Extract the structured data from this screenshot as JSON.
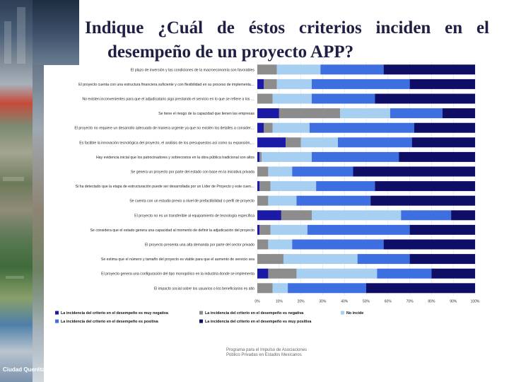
{
  "title": {
    "line1": "Indique ¿Cuál de éstos criterios inciden en el",
    "line2": "desempeño de un proyecto APP?"
  },
  "chart_data": {
    "type": "bar",
    "orientation": "horizontal",
    "stacked": true,
    "percent": true,
    "xlim": [
      0,
      100
    ],
    "xticks": [
      "0%",
      "10%",
      "20%",
      "30%",
      "40%",
      "50%",
      "60%",
      "70%",
      "80%",
      "90%",
      "100%"
    ],
    "categories": [
      "El plazo de inversión y las condiciones de la macroeconomía son favorables",
      "El proyecto cuenta con una estructura financiera suficiente y con flexibilidad en su proceso de implementación, así como las previsiones de rentabilidad y factibilidad",
      "No existen inconvenientes para que el adjudicatario siga prestando el servicio en lo que se refiere a los servicios auxiliares y para que el sector privado los servicios auxiliares, complementarios o",
      "Se tiene el riesgo de la capacidad que tienen las empresas",
      "El proyecto no requiere un desarrollo adecuado de manera urgente ya que no existen los detalles a considerar de índole política o por demandas de la población",
      "Es factible la innovación tecnológica del proyecto, el análisis de los presupuestos así como su expansión, ajuste conforme posible",
      "Hay evidencia inicial que los patrocinadores y sobrecostos en la obra pública tradicional son altos",
      "Se genera un proyecto por parte del estado con base en la iniciativa privada",
      "Si ha detectado que la etapa de estructuración puede ser desarrollada por un Líder de Proyecto y este cuenta con una Gerencia de Proyecto para su desarrollo",
      "Se cuenta con un estudio previo a nivel de prefactibilidad o perfil de proyecto",
      "El proyecto no es un transferible al equipamiento de tecnología específica",
      "Se considera que el estado genera una capacidad al momento de definir la adjudicación del proyecto",
      "El proyecto presenta una alta demanda por parte del sector privado",
      "Se estima que el número y tamaño del proyecto es viable para que el aumento de servicio sea",
      "El proyecto genera una configuración del tipo monopólico en la industria donde se implementa",
      "El impacto social sobre los usuarios o los beneficiarios es alto"
    ],
    "series": [
      {
        "name": "La incidencia del criterio en el desempeño es muy negativa",
        "color": "#1a1aa6",
        "values": [
          0,
          3,
          0,
          10,
          3,
          13,
          1,
          0,
          1,
          0,
          11,
          1,
          0,
          0,
          5,
          0
        ]
      },
      {
        "name": "La incidencia del criterio en el desempeño es negativa",
        "color": "#8c8c8c",
        "values": [
          9,
          6,
          7,
          28,
          4,
          7,
          1,
          5,
          5,
          5,
          14,
          5,
          5,
          12,
          13,
          7
        ]
      },
      {
        "name": "No incide",
        "color": "#a7cff2",
        "values": [
          20,
          16,
          18,
          23,
          17,
          17,
          23,
          11,
          21,
          13,
          41,
          17,
          11,
          34,
          37,
          7
        ]
      },
      {
        "name": "La incidencia del criterio en el desempeño es positiva",
        "color": "#3d6fe0",
        "values": [
          29,
          45,
          29,
          24,
          48,
          34,
          40,
          28,
          27,
          34,
          23,
          47,
          42,
          24,
          25,
          36
        ]
      },
      {
        "name": "La incidencia del criterio en el desempeño es muy positiva",
        "color": "#0e0e66",
        "values": [
          42,
          30,
          46,
          15,
          28,
          29,
          35,
          56,
          46,
          48,
          11,
          30,
          42,
          30,
          20,
          50
        ]
      }
    ]
  },
  "source": "Programa para el Impulso de Asociaciones Público Privadas en Estados Mexicanos",
  "logo": "Ciudad Querétaro"
}
